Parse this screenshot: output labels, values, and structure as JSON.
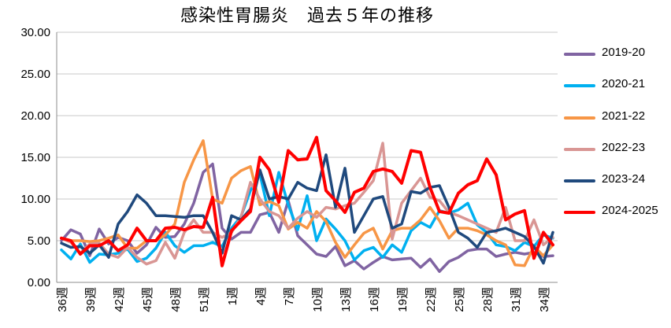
{
  "chart_data": {
    "type": "line",
    "title": "感染性胃腸炎　過去５年の推移",
    "xlabel": "",
    "ylabel": "",
    "ylim": [
      0,
      30
    ],
    "yticks": [
      "0.00",
      "5.00",
      "10.00",
      "15.00",
      "20.00",
      "25.00",
      "30.00"
    ],
    "y_tick_values": [
      0,
      5,
      10,
      15,
      20,
      25,
      30
    ],
    "x_tick_labels": [
      "36週",
      "39週",
      "42週",
      "45週",
      "48週",
      "51週",
      "1週",
      "4週",
      "7週",
      "10週",
      "13週",
      "16週",
      "19週",
      "22週",
      "25週",
      "28週",
      "31週",
      "34週"
    ],
    "x_tick_positions": [
      0,
      3,
      6,
      9,
      12,
      15,
      18,
      21,
      24,
      27,
      30,
      33,
      36,
      39,
      42,
      45,
      48,
      51
    ],
    "grid": true,
    "legend_position": "right",
    "series": [
      {
        "name": "2019-20",
        "color": "#8064A2",
        "values": [
          5.0,
          6.3,
          5.8,
          3.2,
          6.4,
          4.6,
          5.4,
          5.0,
          3.5,
          4.5,
          6.6,
          5.4,
          5.5,
          7.0,
          9.5,
          13.2,
          14.2,
          6.5,
          5.2,
          6.0,
          6.0,
          8.1,
          8.4,
          6.0,
          9.8,
          5.6,
          4.5,
          3.4,
          3.1,
          4.3,
          2.0,
          2.6,
          1.6,
          2.4,
          3.1,
          2.7,
          2.8,
          2.9,
          1.8,
          2.8,
          1.3,
          2.5,
          3.0,
          3.8,
          4.0,
          4.0,
          3.1,
          3.4,
          3.6,
          3.4,
          3.6,
          3.1,
          3.2
        ]
      },
      {
        "name": "2020-21",
        "color": "#00B0F0",
        "values": [
          3.9,
          2.8,
          4.6,
          2.4,
          3.4,
          3.3,
          3.5,
          4.0,
          2.5,
          2.9,
          4.1,
          6.0,
          4.4,
          3.6,
          4.4,
          4.4,
          4.8,
          4.3,
          6.5,
          7.9,
          11.0,
          13.0,
          8.0,
          13.2,
          9.3,
          6.3,
          10.4,
          5.0,
          7.6,
          6.4,
          5.0,
          2.7,
          3.8,
          4.2,
          3.0,
          4.5,
          3.6,
          6.2,
          7.2,
          6.6,
          8.6,
          8.3,
          8.7,
          9.5,
          6.9,
          6.0,
          4.5,
          4.3,
          3.8,
          4.8,
          4.3,
          5.7,
          5.3
        ]
      },
      {
        "name": "2021-22",
        "color": "#F79646",
        "values": [
          5.3,
          5.0,
          5.0,
          4.9,
          5.0,
          5.3,
          5.7,
          4.1,
          4.1,
          5.0,
          5.0,
          5.7,
          7.0,
          12.0,
          14.7,
          17.0,
          10.0,
          9.5,
          12.5,
          13.4,
          13.9,
          9.3,
          9.7,
          9.2,
          6.4,
          7.2,
          6.5,
          8.5,
          7.3,
          4.8,
          3.0,
          4.5,
          5.9,
          6.5,
          4.0,
          6.2,
          6.5,
          6.5,
          7.5,
          9.0,
          7.4,
          5.3,
          6.5,
          6.5,
          6.2,
          5.7,
          5.0,
          4.5,
          2.1,
          2.0,
          4.3,
          3.2,
          4.5
        ]
      },
      {
        "name": "2022-23",
        "color": "#D99694",
        "values": [
          5.3,
          4.8,
          3.5,
          4.6,
          4.7,
          3.4,
          3.0,
          4.2,
          3.0,
          2.2,
          2.6,
          4.8,
          2.9,
          6.0,
          7.5,
          6.0,
          6.0,
          5.4,
          6.0,
          7.8,
          12.0,
          10.0,
          8.5,
          8.0,
          6.5,
          7.7,
          8.5,
          7.8,
          9.0,
          8.8,
          9.2,
          9.5,
          10.8,
          12.2,
          16.7,
          5.2,
          9.5,
          11.0,
          12.5,
          10.2,
          9.8,
          8.4,
          8.0,
          7.5,
          7.0,
          6.5,
          6.0,
          9.0,
          5.0,
          5.0,
          7.5,
          4.5,
          5.4
        ]
      },
      {
        "name": "2023-24",
        "color": "#1F497D",
        "values": [
          4.7,
          4.2,
          4.3,
          3.5,
          4.5,
          3.0,
          7.0,
          8.5,
          10.5,
          9.5,
          8.0,
          8.0,
          7.9,
          7.8,
          8.0,
          8.0,
          6.0,
          3.5,
          8.0,
          7.5,
          8.8,
          13.5,
          10.0,
          10.3,
          10.0,
          12.0,
          11.3,
          11.0,
          15.3,
          9.0,
          13.7,
          6.0,
          8.0,
          10.0,
          10.3,
          6.5,
          7.0,
          10.9,
          10.7,
          11.4,
          11.6,
          9.0,
          6.0,
          5.3,
          4.2,
          6.0,
          6.2,
          6.5,
          6.0,
          5.5,
          4.3,
          2.3,
          6.0
        ]
      },
      {
        "name": "2024-2025",
        "color": "#FF0000",
        "values": [
          5.3,
          5.0,
          3.4,
          4.4,
          4.4,
          5.0,
          3.8,
          4.5,
          6.5,
          5.0,
          5.0,
          6.5,
          6.6,
          6.3,
          6.7,
          6.6,
          10.2,
          2.0,
          6.2,
          7.4,
          8.5,
          15.0,
          13.5,
          9.6,
          15.8,
          14.7,
          14.8,
          17.4,
          11.0,
          9.8,
          8.4,
          10.8,
          11.3,
          13.3,
          13.6,
          13.3,
          11.9,
          15.8,
          15.6,
          11.4,
          8.5,
          8.3,
          10.7,
          11.7,
          12.2,
          14.8,
          12.9,
          7.5,
          8.2,
          8.6,
          2.9,
          6.0,
          4.5
        ]
      }
    ]
  }
}
